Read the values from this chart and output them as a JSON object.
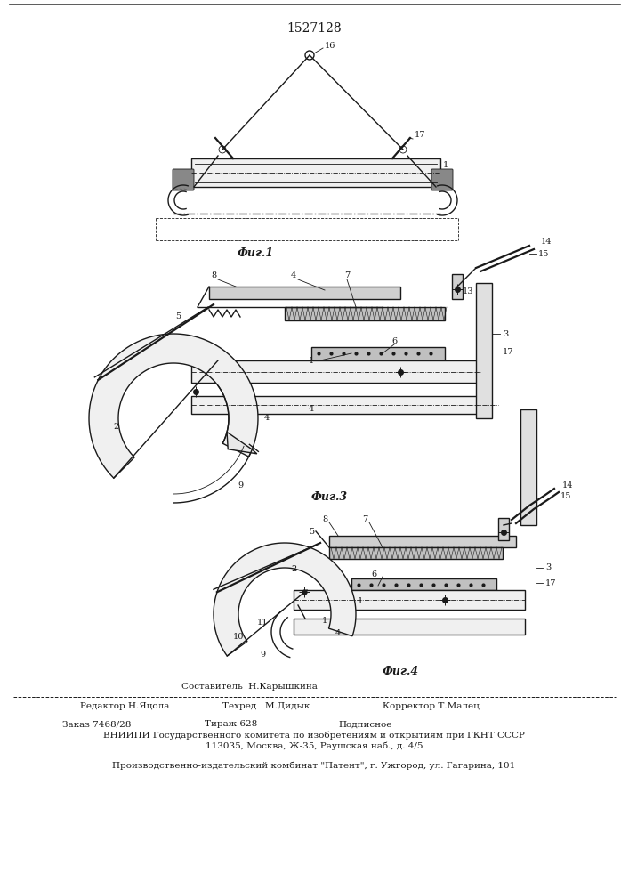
{
  "patent_number": "1527128",
  "background_color": "#ffffff",
  "line_color": "#1a1a1a",
  "fig_label_1": "Фиг.1",
  "fig_label_2": "Фиг.3",
  "fig_label_3": "Фиг.4",
  "footer_sestavitel": "Составитель  Н.Карышкина",
  "footer_redaktor": "Редактор Н.Яцола",
  "footer_tehred": "Техред   М.Дидык",
  "footer_korrektor": "Корректор Т.Малец",
  "footer_zakaz": "Заказ 7468/28",
  "footer_tiraz": "Тираж 628",
  "footer_podpisnoe": "Подписное",
  "footer_vniipи": "ВНИИПИ Государственного комитета по изобретениям и открытиям при ГКНТ СССР",
  "footer_address": "113035, Москва, Ж-35, Раушская наб., д. 4/5",
  "footer_publisher": "Производственно-издательский комбинат \"Патент\", г. Ужгород, ул. Гагарина, 101"
}
